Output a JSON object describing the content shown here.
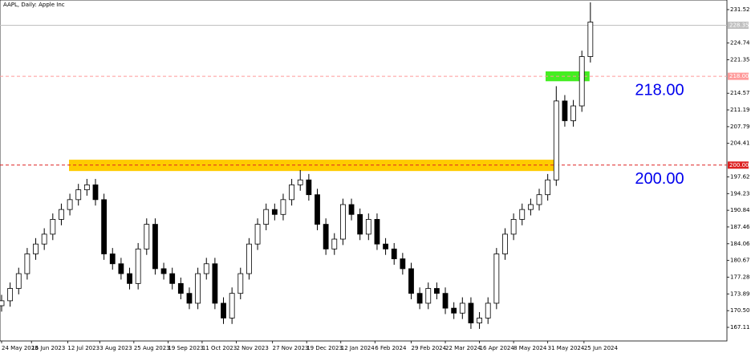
{
  "chart_data": {
    "type": "candlestick",
    "title": "AAPL, Daily:  Apple Inc",
    "x": [
      0,
      4,
      8,
      12,
      16,
      20,
      24,
      28,
      32,
      36,
      40,
      44,
      48,
      52,
      56,
      60,
      64,
      68,
      72,
      76,
      80,
      84,
      88,
      92,
      96,
      100,
      104,
      108,
      112,
      116,
      120,
      124,
      128,
      132,
      136,
      140,
      144,
      148,
      152,
      156,
      160,
      164,
      168,
      172,
      176,
      180,
      184,
      188,
      192,
      196,
      200,
      204,
      208,
      212,
      216,
      220,
      224,
      228,
      232,
      236,
      240,
      244,
      248,
      252,
      256,
      260,
      264,
      268,
      272,
      276
    ],
    "open": [
      171.5,
      172.5,
      175,
      178,
      182,
      184,
      186,
      189,
      191,
      193,
      195,
      196,
      193,
      182,
      180,
      178,
      176,
      183,
      188,
      179,
      178,
      176,
      174,
      172,
      178,
      180,
      172,
      169,
      174,
      178,
      184,
      188,
      191,
      190,
      193,
      196,
      197,
      194,
      188,
      183,
      185,
      192,
      190,
      186,
      189,
      184,
      183,
      181,
      179,
      174,
      172,
      175,
      174,
      171,
      170,
      172,
      168,
      169,
      172,
      182,
      186,
      189,
      191,
      192,
      194,
      197,
      213,
      209,
      212,
      222
    ],
    "high": [
      173.7,
      176.2,
      179.2,
      183.2,
      185.2,
      187.2,
      190.2,
      192.2,
      194.2,
      196.2,
      197.2,
      197.2,
      194.2,
      183.2,
      181.2,
      179.2,
      184.2,
      189.2,
      189.2,
      180.2,
      179.2,
      177.2,
      175.2,
      179.2,
      181.2,
      181.2,
      173.2,
      175.2,
      179.2,
      185.2,
      189.2,
      192.2,
      192.2,
      194.2,
      197.2,
      199,
      198.2,
      195.2,
      189.2,
      186.2,
      193.2,
      193.2,
      191.2,
      190.2,
      190.2,
      185.2,
      184.2,
      182.2,
      180.2,
      175.2,
      176.2,
      176.2,
      175.2,
      172.2,
      173.2,
      173.2,
      170.2,
      173.2,
      183.2,
      187.2,
      190.2,
      192.2,
      193.2,
      195.2,
      198.2,
      216,
      214.2,
      213.2,
      223.2,
      233
    ],
    "low": [
      170.3,
      171.3,
      173.8,
      176.8,
      180.8,
      182.8,
      184.8,
      187.8,
      189.8,
      191.8,
      193.8,
      191.8,
      180.8,
      178.8,
      176.8,
      174.8,
      174.8,
      181.8,
      177.8,
      176.8,
      174.8,
      172.8,
      170.8,
      170.8,
      176.8,
      170.8,
      167.8,
      167.8,
      172.8,
      176.8,
      182.8,
      186.8,
      188.8,
      188.8,
      191.8,
      194.8,
      192.8,
      186.8,
      181.8,
      181.8,
      183.8,
      188.8,
      184.8,
      184.8,
      182.8,
      181.8,
      179.8,
      177.8,
      172.8,
      170.8,
      170.8,
      172.8,
      169.8,
      168.8,
      168.8,
      166.8,
      166.8,
      167.8,
      170.8,
      180.8,
      184.8,
      187.8,
      189.8,
      190.8,
      192.8,
      195.8,
      207.8,
      207.8,
      210.8,
      220.8
    ],
    "close": [
      172.5,
      175,
      178,
      182,
      184,
      186,
      189,
      191,
      193,
      195,
      196,
      193,
      182,
      180,
      178,
      176,
      183,
      188,
      179,
      178,
      176,
      174,
      172,
      178,
      180,
      172,
      169,
      174,
      178,
      184,
      188,
      191,
      190,
      193,
      196,
      197,
      194,
      188,
      183,
      185,
      192,
      190,
      186,
      189,
      184,
      183,
      181,
      179,
      174,
      172,
      175,
      174,
      171,
      170,
      172,
      168,
      169,
      172,
      182,
      186,
      189,
      191,
      192,
      194,
      197,
      213,
      209,
      212,
      222,
      229
    ],
    "xlim": [
      -0.75,
      340
    ],
    "xticks": [
      {
        "value": 0,
        "label": "24 May 2023"
      },
      {
        "value": 14,
        "label": "16 Jun 2023"
      },
      {
        "value": 31,
        "label": "12 Jul 2023"
      },
      {
        "value": 46,
        "label": "3 Aug 2023"
      },
      {
        "value": 62,
        "label": "25 Aug 2023"
      },
      {
        "value": 78,
        "label": "19 Sep 2023"
      },
      {
        "value": 94,
        "label": "11 Oct 2023"
      },
      {
        "value": 110,
        "label": "2 Nov 2023"
      },
      {
        "value": 127,
        "label": "27 Nov 2023"
      },
      {
        "value": 143,
        "label": "19 Dec 2023"
      },
      {
        "value": 159,
        "label": "12 Jan 2024"
      },
      {
        "value": 175,
        "label": "6 Feb 2024"
      },
      {
        "value": 192,
        "label": "29 Feb 2024"
      },
      {
        "value": 208,
        "label": "22 Mar 2024"
      },
      {
        "value": 224,
        "label": "16 Apr 2024"
      },
      {
        "value": 240,
        "label": "8 May 2024"
      },
      {
        "value": 256,
        "label": "31 May 2024"
      },
      {
        "value": 273,
        "label": "25 Jun 2024"
      }
    ],
    "ylim": [
      164.35,
      233.47
    ],
    "yticks": [
      231.52,
      224.74,
      221.35,
      214.57,
      211.19,
      207.79,
      204.41,
      197.62,
      194.23,
      190.84,
      187.46,
      184.06,
      180.67,
      177.28,
      173.89,
      {
        "value": 170.5,
        "label": "170.50"
      },
      167.11
    ],
    "up_color": "#ffffff",
    "down_color": "#000000",
    "wick_color": "#000000",
    "zones": [
      {
        "color": "#ffcc00",
        "x": [
          31.6,
          260
        ],
        "y": [
          198.8,
          201.1
        ]
      },
      {
        "color": "#44ee22",
        "x": [
          255,
          275.6
        ],
        "y": [
          217,
          219
        ]
      }
    ],
    "price_lines": [
      {
        "value": 228.35,
        "label": "228.35",
        "color": "#c0c0c0",
        "dash": false
      },
      {
        "value": 218,
        "label": "218.00",
        "color": "#ff9a9a",
        "dash": true,
        "annotation": "218.00"
      },
      {
        "value": 200,
        "label": "200.00",
        "color": "#dd2222",
        "dash": true,
        "annotation": "200.00"
      }
    ]
  }
}
